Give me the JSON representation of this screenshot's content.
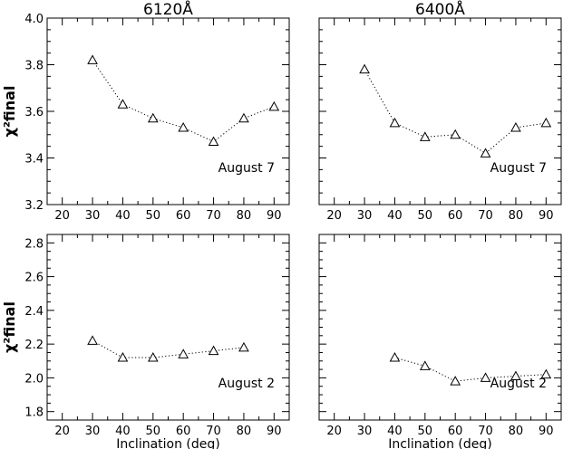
{
  "chart_data": [
    {
      "type": "line",
      "title": "6120Å",
      "annotation": "August 7",
      "xlabel": "",
      "ylabel": "χ²final",
      "xlim": [
        15,
        95
      ],
      "ylim": [
        3.2,
        4.0
      ],
      "xticks": [
        "20",
        "30",
        "40",
        "50",
        "60",
        "70",
        "80",
        "90"
      ],
      "yticks": [
        "3.2",
        "3.4",
        "3.6",
        "3.8",
        "4.0"
      ],
      "marker": "triangle-open",
      "linestyle": "dotted",
      "x": [
        30,
        40,
        50,
        60,
        70,
        80,
        90
      ],
      "y": [
        3.82,
        3.63,
        3.57,
        3.53,
        3.47,
        3.57,
        3.62
      ]
    },
    {
      "type": "line",
      "title": "6400Å",
      "annotation": "August 7",
      "xlabel": "",
      "ylabel": "",
      "xlim": [
        15,
        95
      ],
      "ylim": [
        3.2,
        4.0
      ],
      "xticks": [
        "20",
        "30",
        "40",
        "50",
        "60",
        "70",
        "80",
        "90"
      ],
      "yticks": [],
      "marker": "triangle-open",
      "linestyle": "dotted",
      "x": [
        30,
        40,
        50,
        60,
        70,
        80,
        90
      ],
      "y": [
        3.78,
        3.55,
        3.49,
        3.5,
        3.42,
        3.53,
        3.55
      ]
    },
    {
      "type": "line",
      "title": "",
      "annotation": "August 2",
      "xlabel": "Inclination (deg)",
      "ylabel": "χ²final",
      "xlim": [
        15,
        95
      ],
      "ylim": [
        1.75,
        2.85
      ],
      "xticks": [
        "20",
        "30",
        "40",
        "50",
        "60",
        "70",
        "80",
        "90"
      ],
      "yticks": [
        "1.8",
        "2.0",
        "2.2",
        "2.4",
        "2.6",
        "2.8"
      ],
      "marker": "triangle-open",
      "linestyle": "dotted",
      "x": [
        30,
        40,
        50,
        60,
        70,
        80
      ],
      "y": [
        2.22,
        2.12,
        2.12,
        2.14,
        2.16,
        2.18
      ]
    },
    {
      "type": "line",
      "title": "",
      "annotation": "August 2",
      "xlabel": "Inclination (deg)",
      "ylabel": "",
      "xlim": [
        15,
        95
      ],
      "ylim": [
        1.75,
        2.85
      ],
      "xticks": [
        "20",
        "30",
        "40",
        "50",
        "60",
        "70",
        "80",
        "90"
      ],
      "yticks": [],
      "marker": "triangle-open",
      "linestyle": "dotted",
      "x": [
        40,
        50,
        60,
        70,
        80,
        90
      ],
      "y": [
        2.12,
        2.07,
        1.98,
        2.0,
        2.01,
        2.02
      ]
    }
  ]
}
